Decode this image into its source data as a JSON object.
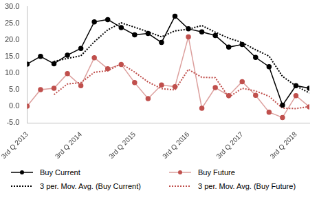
{
  "chart_data": {
    "type": "line",
    "categories": [
      "3rd Q 2013",
      null,
      null,
      null,
      "3rd Q 2014",
      null,
      null,
      null,
      "3rd Q 2015",
      null,
      null,
      null,
      "3rd Q 2016",
      null,
      null,
      null,
      "3rd Q 2017",
      null,
      null,
      null,
      "3rd Q 2018",
      null
    ],
    "series": [
      {
        "name": "Buy Current",
        "color": "#000000",
        "marker": "circle",
        "line_style": "solid",
        "values": [
          12.7,
          15.0,
          12.8,
          15.4,
          17.4,
          25.4,
          26.1,
          23.7,
          21.5,
          21.9,
          19.2,
          27.1,
          23.3,
          22.4,
          21.3,
          17.8,
          18.6,
          14.7,
          11.9,
          0.3,
          6.2,
          5.4
        ]
      },
      {
        "name": "Buy Future",
        "color": "#c0504d",
        "marker": "circle",
        "line_style": "solid",
        "values": [
          0.0,
          5.0,
          5.4,
          9.8,
          6.2,
          14.6,
          11.3,
          12.6,
          7.1,
          2.3,
          6.4,
          5.9,
          20.9,
          -0.6,
          5.6,
          3.2,
          7.4,
          3.3,
          -1.8,
          -3.4,
          3.2,
          -0.2
        ]
      },
      {
        "name": "3 per. Mov. Avg. (Buy Current)",
        "color": "#000000",
        "marker": "none",
        "line_style": "dotted",
        "values": [
          null,
          null,
          13.5,
          14.4,
          15.2,
          19.4,
          23.0,
          25.1,
          23.8,
          22.4,
          20.9,
          22.7,
          23.2,
          24.3,
          22.3,
          20.5,
          19.2,
          17.0,
          15.1,
          9.0,
          6.1,
          4.0
        ]
      },
      {
        "name": "3 per. Mov. Avg. (Buy Future)",
        "color": "#c0504d",
        "marker": "none",
        "line_style": "dotted",
        "values": [
          null,
          null,
          3.5,
          6.7,
          7.1,
          10.2,
          10.7,
          12.8,
          10.3,
          7.3,
          5.3,
          4.9,
          11.1,
          8.7,
          8.6,
          2.7,
          5.4,
          4.6,
          3.0,
          -0.6,
          -0.7,
          -0.1
        ]
      }
    ],
    "ylim": [
      -5,
      30
    ],
    "yticks": [
      {
        "value": -5,
        "label": "-5.0"
      },
      {
        "value": 0,
        "label": "0.0"
      },
      {
        "value": 5,
        "label": "5.0"
      },
      {
        "value": 10,
        "label": "10.0"
      },
      {
        "value": 15,
        "label": "15.0"
      },
      {
        "value": 20,
        "label": "20.0"
      },
      {
        "value": 25,
        "label": "25.0"
      },
      {
        "value": 30,
        "label": "30.0"
      }
    ],
    "grid": false,
    "legend": "bottom"
  }
}
